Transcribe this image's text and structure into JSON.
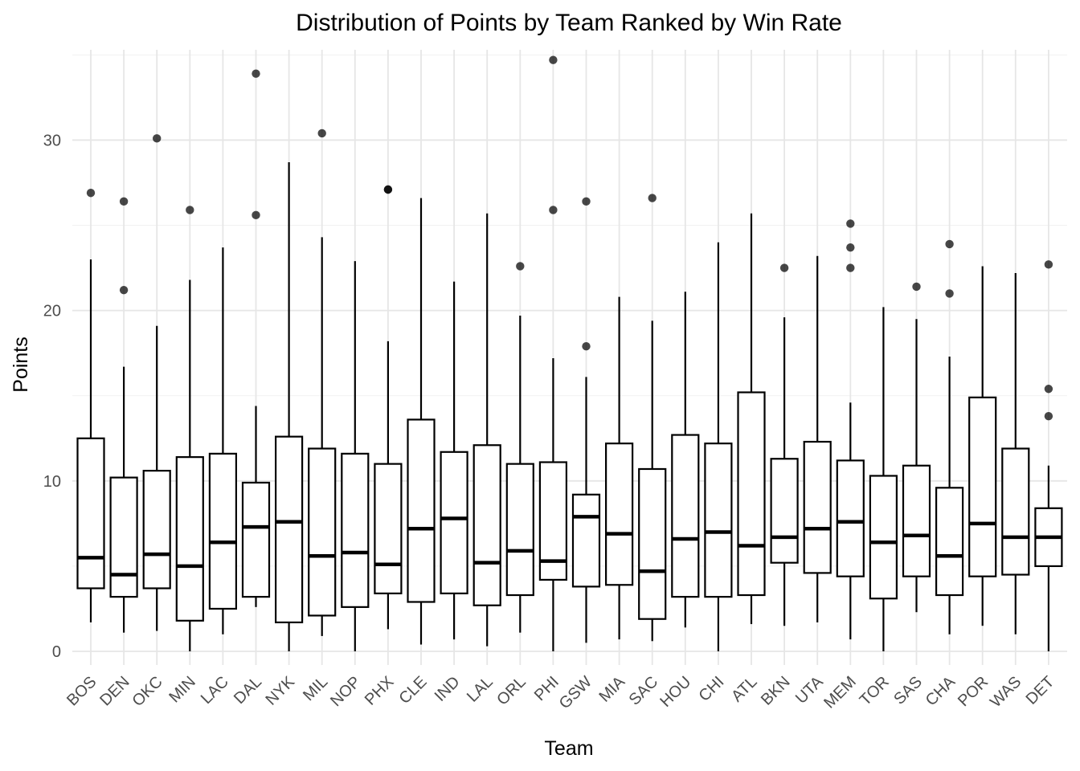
{
  "chart_data": {
    "type": "box",
    "title": "Distribution of Points by Team Ranked by Win Rate",
    "xlabel": "Team",
    "ylabel": "Points",
    "ylim": [
      -0.8,
      35.3
    ],
    "yticks": [
      0,
      10,
      20,
      30
    ],
    "grid": true,
    "legend": "none",
    "colors": {
      "box_fill": "#ffffff",
      "line": "#000000",
      "grid": "#e6e6e6",
      "tick_text": "#4d4d4d"
    },
    "categories": [
      "BOS",
      "DEN",
      "OKC",
      "MIN",
      "LAC",
      "DAL",
      "NYK",
      "MIL",
      "NOP",
      "PHX",
      "CLE",
      "IND",
      "LAL",
      "ORL",
      "PHI",
      "GSW",
      "MIA",
      "SAC",
      "HOU",
      "CHI",
      "ATL",
      "BKN",
      "UTA",
      "MEM",
      "TOR",
      "SAS",
      "CHA",
      "POR",
      "WAS",
      "DET"
    ],
    "boxes": [
      {
        "team": "BOS",
        "whisker_low": 1.7,
        "q1": 3.7,
        "median": 5.5,
        "q3": 12.5,
        "whisker_high": 23.0,
        "outliers": [
          26.9
        ]
      },
      {
        "team": "DEN",
        "whisker_low": 1.1,
        "q1": 3.2,
        "median": 4.5,
        "q3": 10.2,
        "whisker_high": 16.7,
        "outliers": [
          21.2,
          26.4
        ]
      },
      {
        "team": "OKC",
        "whisker_low": 1.2,
        "q1": 3.7,
        "median": 5.7,
        "q3": 10.6,
        "whisker_high": 19.1,
        "outliers": [
          30.1
        ]
      },
      {
        "team": "MIN",
        "whisker_low": 0.0,
        "q1": 1.8,
        "median": 5.0,
        "q3": 11.4,
        "whisker_high": 21.8,
        "outliers": [
          25.9
        ]
      },
      {
        "team": "LAC",
        "whisker_low": 1.0,
        "q1": 2.5,
        "median": 6.4,
        "q3": 11.6,
        "whisker_high": 23.7,
        "outliers": []
      },
      {
        "team": "DAL",
        "whisker_low": 2.6,
        "q1": 3.2,
        "median": 7.3,
        "q3": 9.9,
        "whisker_high": 14.4,
        "outliers": [
          25.6,
          33.9
        ]
      },
      {
        "team": "NYK",
        "whisker_low": 0.0,
        "q1": 1.7,
        "median": 7.6,
        "q3": 12.6,
        "whisker_high": 28.7,
        "outliers": []
      },
      {
        "team": "MIL",
        "whisker_low": 0.9,
        "q1": 2.1,
        "median": 5.6,
        "q3": 11.9,
        "whisker_high": 24.3,
        "outliers": [
          30.4
        ]
      },
      {
        "team": "NOP",
        "whisker_low": 0.0,
        "q1": 2.6,
        "median": 5.8,
        "q3": 11.6,
        "whisker_high": 22.9,
        "outliers": []
      },
      {
        "team": "PHX",
        "whisker_low": 1.3,
        "q1": 3.4,
        "median": 5.1,
        "q3": 11.0,
        "whisker_high": 18.2,
        "outliers": [
          27.1,
          27.1
        ]
      },
      {
        "team": "CLE",
        "whisker_low": 0.4,
        "q1": 2.9,
        "median": 7.2,
        "q3": 13.6,
        "whisker_high": 26.6,
        "outliers": []
      },
      {
        "team": "IND",
        "whisker_low": 0.7,
        "q1": 3.4,
        "median": 7.8,
        "q3": 11.7,
        "whisker_high": 21.7,
        "outliers": []
      },
      {
        "team": "LAL",
        "whisker_low": 0.3,
        "q1": 2.7,
        "median": 5.2,
        "q3": 12.1,
        "whisker_high": 25.7,
        "outliers": []
      },
      {
        "team": "ORL",
        "whisker_low": 1.1,
        "q1": 3.3,
        "median": 5.9,
        "q3": 11.0,
        "whisker_high": 19.7,
        "outliers": [
          22.6
        ]
      },
      {
        "team": "PHI",
        "whisker_low": 0.0,
        "q1": 4.2,
        "median": 5.3,
        "q3": 11.1,
        "whisker_high": 17.2,
        "outliers": [
          25.9,
          34.7
        ]
      },
      {
        "team": "GSW",
        "whisker_low": 0.5,
        "q1": 3.8,
        "median": 7.9,
        "q3": 9.2,
        "whisker_high": 16.1,
        "outliers": [
          17.9,
          26.4
        ]
      },
      {
        "team": "MIA",
        "whisker_low": 0.7,
        "q1": 3.9,
        "median": 6.9,
        "q3": 12.2,
        "whisker_high": 20.8,
        "outliers": []
      },
      {
        "team": "SAC",
        "whisker_low": 0.6,
        "q1": 1.9,
        "median": 4.7,
        "q3": 10.7,
        "whisker_high": 19.4,
        "outliers": [
          26.6
        ]
      },
      {
        "team": "HOU",
        "whisker_low": 1.4,
        "q1": 3.2,
        "median": 6.6,
        "q3": 12.7,
        "whisker_high": 21.1,
        "outliers": []
      },
      {
        "team": "CHI",
        "whisker_low": 0.0,
        "q1": 3.2,
        "median": 7.0,
        "q3": 12.2,
        "whisker_high": 24.0,
        "outliers": []
      },
      {
        "team": "ATL",
        "whisker_low": 1.6,
        "q1": 3.3,
        "median": 6.2,
        "q3": 15.2,
        "whisker_high": 25.7,
        "outliers": []
      },
      {
        "team": "BKN",
        "whisker_low": 1.5,
        "q1": 5.2,
        "median": 6.7,
        "q3": 11.3,
        "whisker_high": 19.6,
        "outliers": [
          22.5
        ]
      },
      {
        "team": "UTA",
        "whisker_low": 1.7,
        "q1": 4.6,
        "median": 7.2,
        "q3": 12.3,
        "whisker_high": 23.2,
        "outliers": []
      },
      {
        "team": "MEM",
        "whisker_low": 0.7,
        "q1": 4.4,
        "median": 7.6,
        "q3": 11.2,
        "whisker_high": 14.6,
        "outliers": [
          22.5,
          23.7,
          25.1
        ]
      },
      {
        "team": "TOR",
        "whisker_low": 0.0,
        "q1": 3.1,
        "median": 6.4,
        "q3": 10.3,
        "whisker_high": 20.2,
        "outliers": []
      },
      {
        "team": "SAS",
        "whisker_low": 2.3,
        "q1": 4.4,
        "median": 6.8,
        "q3": 10.9,
        "whisker_high": 19.5,
        "outliers": [
          21.4
        ]
      },
      {
        "team": "CHA",
        "whisker_low": 1.0,
        "q1": 3.3,
        "median": 5.6,
        "q3": 9.6,
        "whisker_high": 17.3,
        "outliers": [
          21.0,
          23.9
        ]
      },
      {
        "team": "POR",
        "whisker_low": 1.5,
        "q1": 4.4,
        "median": 7.5,
        "q3": 14.9,
        "whisker_high": 22.6,
        "outliers": []
      },
      {
        "team": "WAS",
        "whisker_low": 1.0,
        "q1": 4.5,
        "median": 6.7,
        "q3": 11.9,
        "whisker_high": 22.2,
        "outliers": []
      },
      {
        "team": "DET",
        "whisker_low": 0.0,
        "q1": 5.0,
        "median": 6.7,
        "q3": 8.4,
        "whisker_high": 10.9,
        "outliers": [
          13.8,
          15.4,
          22.7
        ]
      }
    ]
  }
}
